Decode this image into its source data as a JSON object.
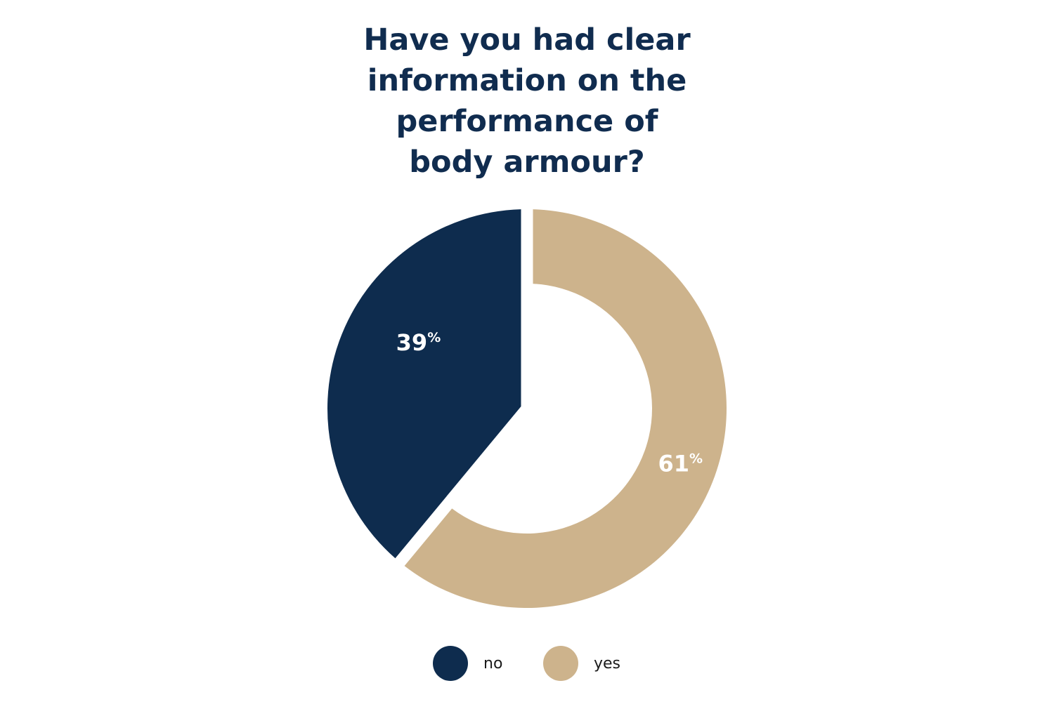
{
  "chart_data": {
    "type": "pie",
    "variant": "donut",
    "title_lines": [
      "Have you had clear",
      "information on the",
      "performance of",
      "body armour?"
    ],
    "slices": [
      {
        "label": "no",
        "value": 39,
        "display": "39",
        "unit": "%",
        "color": "#0e2c4e"
      },
      {
        "label": "yes",
        "value": 61,
        "display": "61",
        "unit": "%",
        "color": "#cdb38c"
      }
    ],
    "legend": {
      "placement": "bottom",
      "items": [
        {
          "label": "no",
          "color": "#0e2c4e"
        },
        {
          "label": "yes",
          "color": "#cdb38c"
        }
      ]
    }
  }
}
